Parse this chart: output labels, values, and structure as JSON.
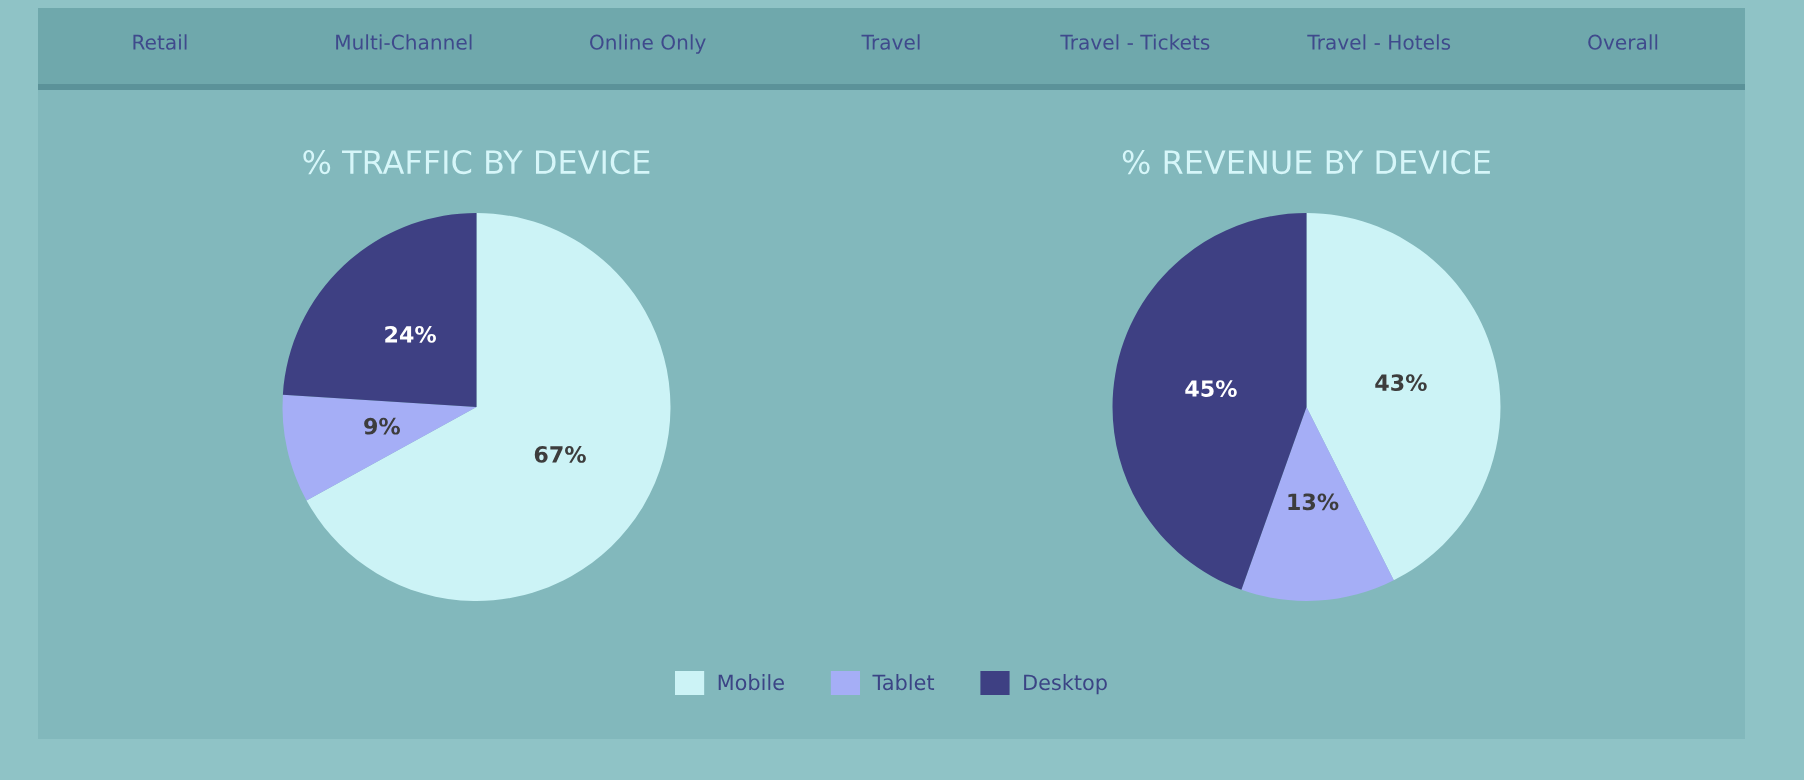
{
  "chart_data": [
    {
      "type": "other",
      "annotations": [
        "Retail",
        "Multi-Channel",
        "Online Only",
        "Travel",
        "Travel - Tickets",
        "Travel - Hotels",
        "Overall"
      ]
    },
    {
      "type": "pie",
      "title": "% TRAFFIC BY DEVICE",
      "categories": [
        "Mobile",
        "Tablet",
        "Desktop"
      ],
      "values": [
        67,
        9,
        24
      ],
      "colors": [
        "#ccf3f6",
        "#a5aef6",
        "#3e4083"
      ],
      "value_labels": [
        "67%",
        "9%",
        "24%"
      ],
      "legend": "bottom"
    },
    {
      "type": "pie",
      "title": "% REVENUE BY DEVICE",
      "categories": [
        null,
        null,
        null
      ],
      "values": [
        43,
        13,
        45
      ],
      "colors": [
        "#ccf3f6",
        "#a5aef6",
        "#3e4083"
      ],
      "value_labels": [
        "43%",
        "13%",
        "45%"
      ]
    }
  ]
}
